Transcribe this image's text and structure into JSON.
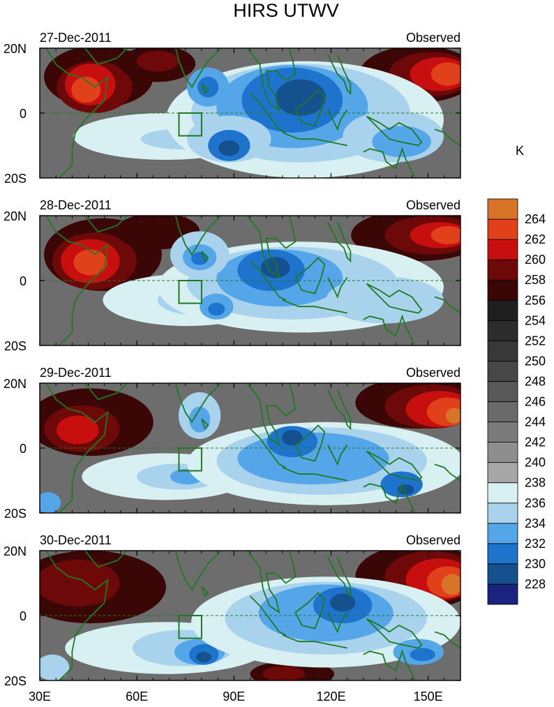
{
  "title": "HIRS UTWV",
  "colorbar": {
    "unit": "K",
    "levels": [
      "228",
      "230",
      "232",
      "234",
      "236",
      "238",
      "240",
      "242",
      "244",
      "246",
      "248",
      "250",
      "252",
      "254",
      "256",
      "258",
      "260",
      "262",
      "264"
    ],
    "colors": [
      "#1a237e",
      "#15508f",
      "#1e74cc",
      "#55a6e8",
      "#a9d3ec",
      "#d9f0f3",
      "#a6a6a6",
      "#8e8e8e",
      "#7b7b7b",
      "#6a6a6a",
      "#585858",
      "#474747",
      "#383838",
      "#2c2c2c",
      "#1f1f1f",
      "#3a0606",
      "#6e0909",
      "#c80f0f",
      "#e0411a",
      "#d87428"
    ]
  },
  "panels": [
    {
      "date": "27-Dec-2011",
      "label": "Observed"
    },
    {
      "date": "28-Dec-2011",
      "label": "Observed"
    },
    {
      "date": "29-Dec-2011",
      "label": "Observed"
    },
    {
      "date": "30-Dec-2011",
      "label": "Observed"
    }
  ],
  "axes": {
    "lat_ticks": [
      "20N",
      "0",
      "20S"
    ],
    "lon_ticks": [
      "30E",
      "60E",
      "90E",
      "120E",
      "150E"
    ],
    "lat_range": [
      -20,
      20
    ],
    "lon_range": [
      30,
      160
    ]
  },
  "colors": {
    "coast": "#1f7a1f",
    "background_gray": "#6d6d6d"
  }
}
